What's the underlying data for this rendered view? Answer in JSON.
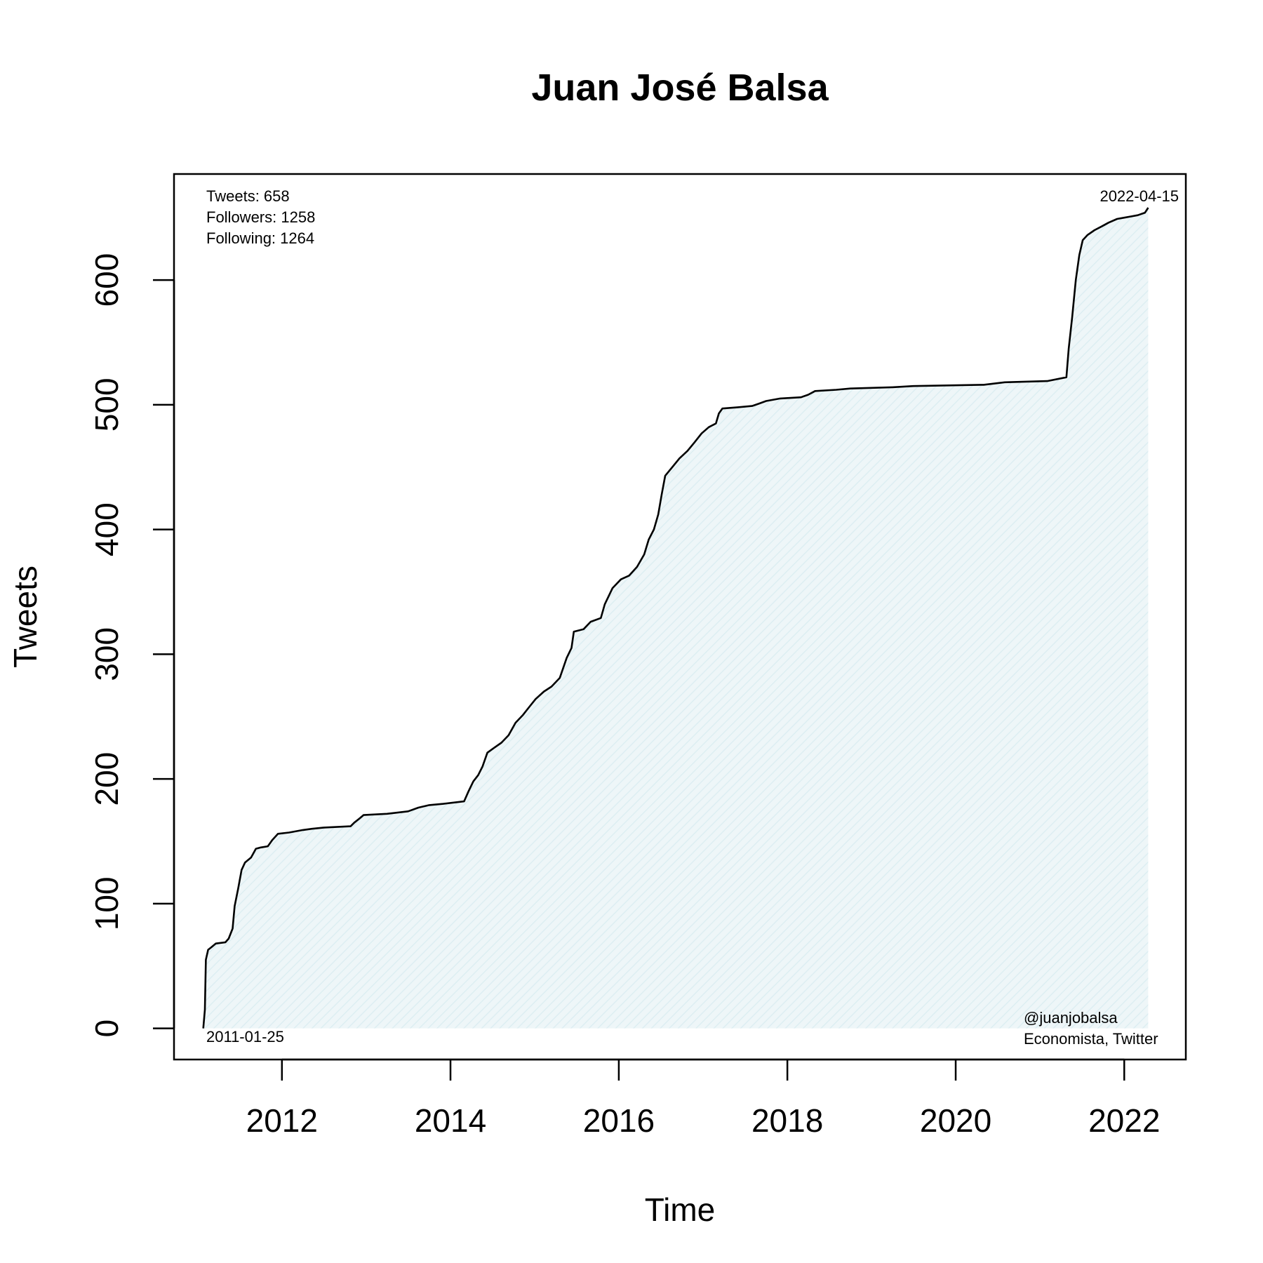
{
  "chart_data": {
    "type": "area",
    "title": "Juan José Balsa",
    "xlabel": "Time",
    "ylabel": "Tweets",
    "xlim": [
      "2010-09-20",
      "2022-09-25"
    ],
    "ylim": [
      -25,
      685
    ],
    "x_ticks": [
      {
        "label": "2012",
        "value": "2012-01-01"
      },
      {
        "label": "2014",
        "value": "2014-01-01"
      },
      {
        "label": "2016",
        "value": "2016-01-01"
      },
      {
        "label": "2018",
        "value": "2018-01-01"
      },
      {
        "label": "2020",
        "value": "2020-01-01"
      },
      {
        "label": "2022",
        "value": "2022-01-01"
      }
    ],
    "y_ticks": [
      0,
      100,
      200,
      300,
      400,
      500,
      600
    ],
    "grid": false,
    "colors": {
      "line": "#000000",
      "fill": "#eef6f8",
      "hatch": "#ddeef2",
      "frame": "#000000"
    },
    "annotations": {
      "top_left": [
        "Tweets: 658",
        "Followers: 1258",
        "Following: 1264"
      ],
      "top_right": "2022-04-15",
      "bottom_left": "2011-01-25",
      "bottom_right": [
        "@juanjobalsa",
        "Economista, Twitter"
      ]
    },
    "series": [
      {
        "points": [
          [
            "2011-01-25",
            0
          ],
          [
            "2011-02-01",
            15
          ],
          [
            "2011-02-05",
            55
          ],
          [
            "2011-02-15",
            63
          ],
          [
            "2011-03-01",
            65
          ],
          [
            "2011-03-20",
            68
          ],
          [
            "2011-05-01",
            69
          ],
          [
            "2011-05-15",
            72
          ],
          [
            "2011-06-01",
            80
          ],
          [
            "2011-06-10",
            98
          ],
          [
            "2011-06-25",
            112
          ],
          [
            "2011-07-10",
            127
          ],
          [
            "2011-07-25",
            133
          ],
          [
            "2011-08-20",
            137
          ],
          [
            "2011-09-10",
            144
          ],
          [
            "2011-10-01",
            145
          ],
          [
            "2011-11-01",
            146
          ],
          [
            "2011-11-20",
            151
          ],
          [
            "2011-12-15",
            156
          ],
          [
            "2012-02-01",
            157
          ],
          [
            "2012-04-01",
            159
          ],
          [
            "2012-05-10",
            160
          ],
          [
            "2012-07-01",
            161
          ],
          [
            "2012-10-25",
            162
          ],
          [
            "2012-11-10",
            165
          ],
          [
            "2012-12-01",
            168
          ],
          [
            "2012-12-20",
            171
          ],
          [
            "2013-04-01",
            172
          ],
          [
            "2013-07-01",
            174
          ],
          [
            "2013-08-15",
            177
          ],
          [
            "2013-10-01",
            179
          ],
          [
            "2013-12-01",
            180
          ],
          [
            "2014-03-01",
            182
          ],
          [
            "2014-03-20",
            190
          ],
          [
            "2014-04-10",
            198
          ],
          [
            "2014-05-01",
            203
          ],
          [
            "2014-05-20",
            210
          ],
          [
            "2014-06-10",
            221
          ],
          [
            "2014-07-10",
            225
          ],
          [
            "2014-08-10",
            229
          ],
          [
            "2014-09-10",
            235
          ],
          [
            "2014-10-10",
            245
          ],
          [
            "2014-11-10",
            251
          ],
          [
            "2014-12-10",
            258
          ],
          [
            "2015-01-05",
            264
          ],
          [
            "2015-02-10",
            270
          ],
          [
            "2015-03-15",
            274
          ],
          [
            "2015-04-20",
            281
          ],
          [
            "2015-05-20",
            297
          ],
          [
            "2015-06-10",
            305
          ],
          [
            "2015-06-20",
            318
          ],
          [
            "2015-08-01",
            320
          ],
          [
            "2015-09-01",
            326
          ],
          [
            "2015-10-15",
            329
          ],
          [
            "2015-11-01",
            340
          ],
          [
            "2015-12-05",
            353
          ],
          [
            "2016-01-10",
            360
          ],
          [
            "2016-02-15",
            363
          ],
          [
            "2016-03-20",
            370
          ],
          [
            "2016-04-20",
            380
          ],
          [
            "2016-05-10",
            392
          ],
          [
            "2016-06-01",
            400
          ],
          [
            "2016-06-20",
            412
          ],
          [
            "2016-07-05",
            428
          ],
          [
            "2016-07-20",
            443
          ],
          [
            "2016-08-20",
            450
          ],
          [
            "2016-09-20",
            457
          ],
          [
            "2016-10-25",
            463
          ],
          [
            "2016-11-25",
            470
          ],
          [
            "2016-12-25",
            477
          ],
          [
            "2017-01-25",
            482
          ],
          [
            "2017-02-25",
            485
          ],
          [
            "2017-03-10",
            493
          ],
          [
            "2017-03-25",
            497
          ],
          [
            "2017-06-01",
            498
          ],
          [
            "2017-08-01",
            499
          ],
          [
            "2017-09-01",
            501
          ],
          [
            "2017-10-01",
            503
          ],
          [
            "2017-12-01",
            505
          ],
          [
            "2018-03-01",
            506
          ],
          [
            "2018-04-01",
            508
          ],
          [
            "2018-05-01",
            511
          ],
          [
            "2018-08-01",
            512
          ],
          [
            "2018-10-01",
            513
          ],
          [
            "2019-04-01",
            514
          ],
          [
            "2019-07-01",
            515
          ],
          [
            "2020-05-01",
            516
          ],
          [
            "2020-08-01",
            518
          ],
          [
            "2021-02-01",
            519
          ],
          [
            "2021-04-25",
            522
          ],
          [
            "2021-05-05",
            545
          ],
          [
            "2021-05-20",
            570
          ],
          [
            "2021-06-05",
            600
          ],
          [
            "2021-06-20",
            620
          ],
          [
            "2021-07-05",
            632
          ],
          [
            "2021-07-25",
            636
          ],
          [
            "2021-08-25",
            640
          ],
          [
            "2021-09-25",
            643
          ],
          [
            "2021-10-25",
            646
          ],
          [
            "2021-12-01",
            649
          ],
          [
            "2022-01-01",
            650
          ],
          [
            "2022-02-01",
            651
          ],
          [
            "2022-03-01",
            652
          ],
          [
            "2022-04-01",
            654
          ],
          [
            "2022-04-15",
            658
          ]
        ]
      }
    ]
  }
}
